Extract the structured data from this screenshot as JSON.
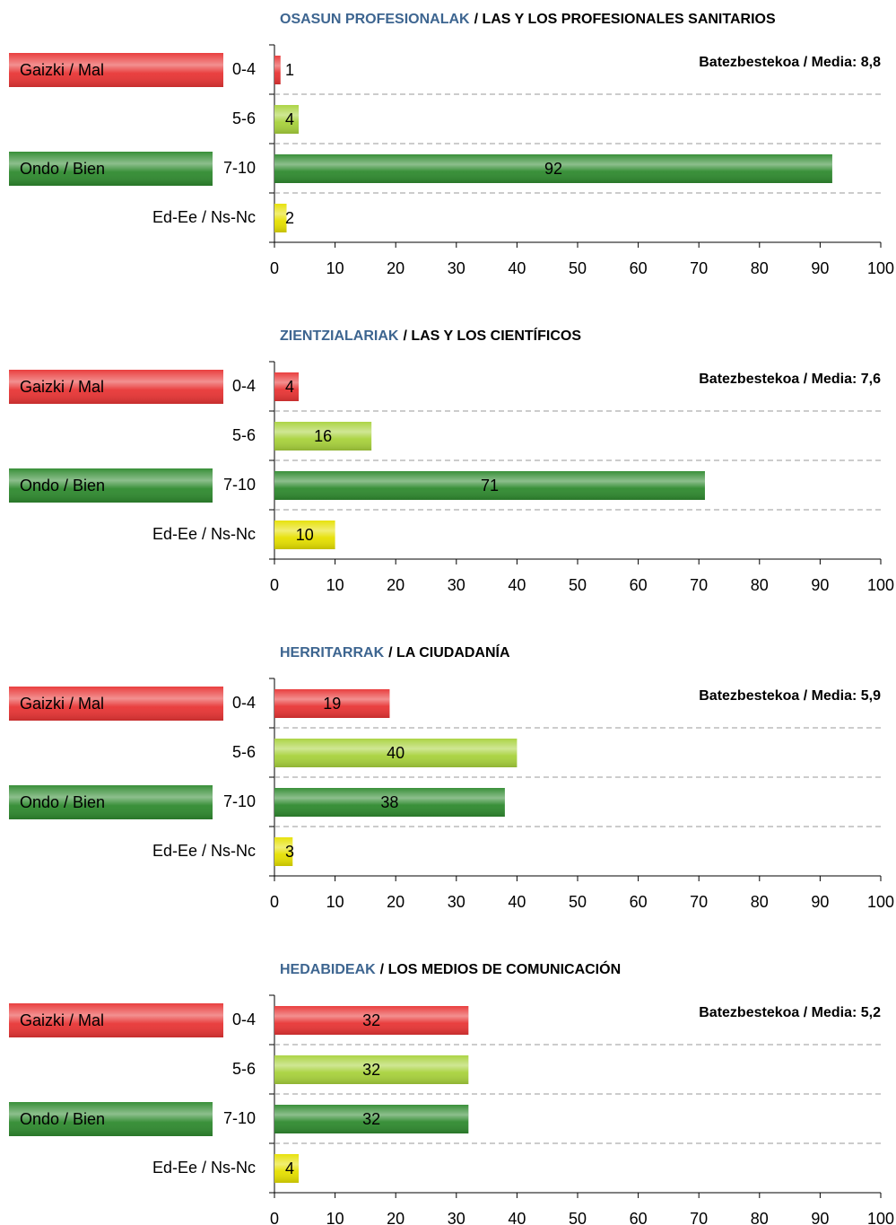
{
  "chart_data": [
    {
      "type": "bar",
      "orientation": "horizontal",
      "title_eu": "OSASUN PROFESIONALAK",
      "title_es": "/ LAS Y LOS PROFESIONALES SANITARIOS",
      "annotation": "Batezbestekoa / Media: 8,8",
      "categories": [
        "0-4",
        "5-6",
        "7-10",
        "Ed-Ee / Ns-Nc"
      ],
      "group_labels": [
        "Gaizki / Mal",
        null,
        "Ondo / Bien",
        null
      ],
      "group_colors": [
        "#e83535",
        null,
        "#2f8a2f",
        null
      ],
      "values": [
        1,
        4,
        92,
        2
      ],
      "colors": [
        "#e83535",
        "#a8d23c",
        "#2f8a2f",
        "#e6e000"
      ],
      "xlim": [
        0,
        100
      ],
      "xticks": [
        0,
        10,
        20,
        30,
        40,
        50,
        60,
        70,
        80,
        90,
        100
      ]
    },
    {
      "type": "bar",
      "orientation": "horizontal",
      "title_eu": "ZIENTZIALARIAK",
      "title_es": "/ LAS Y LOS CIENTÍFICOS",
      "annotation": "Batezbestekoa / Media: 7,6",
      "categories": [
        "0-4",
        "5-6",
        "7-10",
        "Ed-Ee / Ns-Nc"
      ],
      "group_labels": [
        "Gaizki / Mal",
        null,
        "Ondo / Bien",
        null
      ],
      "group_colors": [
        "#e83535",
        null,
        "#2f8a2f",
        null
      ],
      "values": [
        4,
        16,
        71,
        10
      ],
      "colors": [
        "#e83535",
        "#a8d23c",
        "#2f8a2f",
        "#e6e000"
      ],
      "xlim": [
        0,
        100
      ],
      "xticks": [
        0,
        10,
        20,
        30,
        40,
        50,
        60,
        70,
        80,
        90,
        100
      ]
    },
    {
      "type": "bar",
      "orientation": "horizontal",
      "title_eu": "HERRITARRAK",
      "title_es": "/ LA CIUDADANÍA",
      "annotation": "Batezbestekoa / Media: 5,9",
      "categories": [
        "0-4",
        "5-6",
        "7-10",
        "Ed-Ee / Ns-Nc"
      ],
      "group_labels": [
        "Gaizki / Mal",
        null,
        "Ondo / Bien",
        null
      ],
      "group_colors": [
        "#e83535",
        null,
        "#2f8a2f",
        null
      ],
      "values": [
        19,
        40,
        38,
        3
      ],
      "colors": [
        "#e83535",
        "#a8d23c",
        "#2f8a2f",
        "#e6e000"
      ],
      "xlim": [
        0,
        100
      ],
      "xticks": [
        0,
        10,
        20,
        30,
        40,
        50,
        60,
        70,
        80,
        90,
        100
      ]
    },
    {
      "type": "bar",
      "orientation": "horizontal",
      "title_eu": "HEDABIDEAK",
      "title_es": "/ LOS MEDIOS DE COMUNICACIÓN",
      "annotation": "Batezbestekoa / Media: 5,2",
      "categories": [
        "0-4",
        "5-6",
        "7-10",
        "Ed-Ee / Ns-Nc"
      ],
      "group_labels": [
        "Gaizki / Mal",
        null,
        "Ondo / Bien",
        null
      ],
      "group_colors": [
        "#e83535",
        null,
        "#2f8a2f",
        null
      ],
      "values": [
        32,
        32,
        32,
        4
      ],
      "colors": [
        "#e83535",
        "#a8d23c",
        "#2f8a2f",
        "#e6e000"
      ],
      "xlim": [
        0,
        100
      ],
      "xticks": [
        0,
        10,
        20,
        30,
        40,
        50,
        60,
        70,
        80,
        90,
        100
      ]
    }
  ]
}
